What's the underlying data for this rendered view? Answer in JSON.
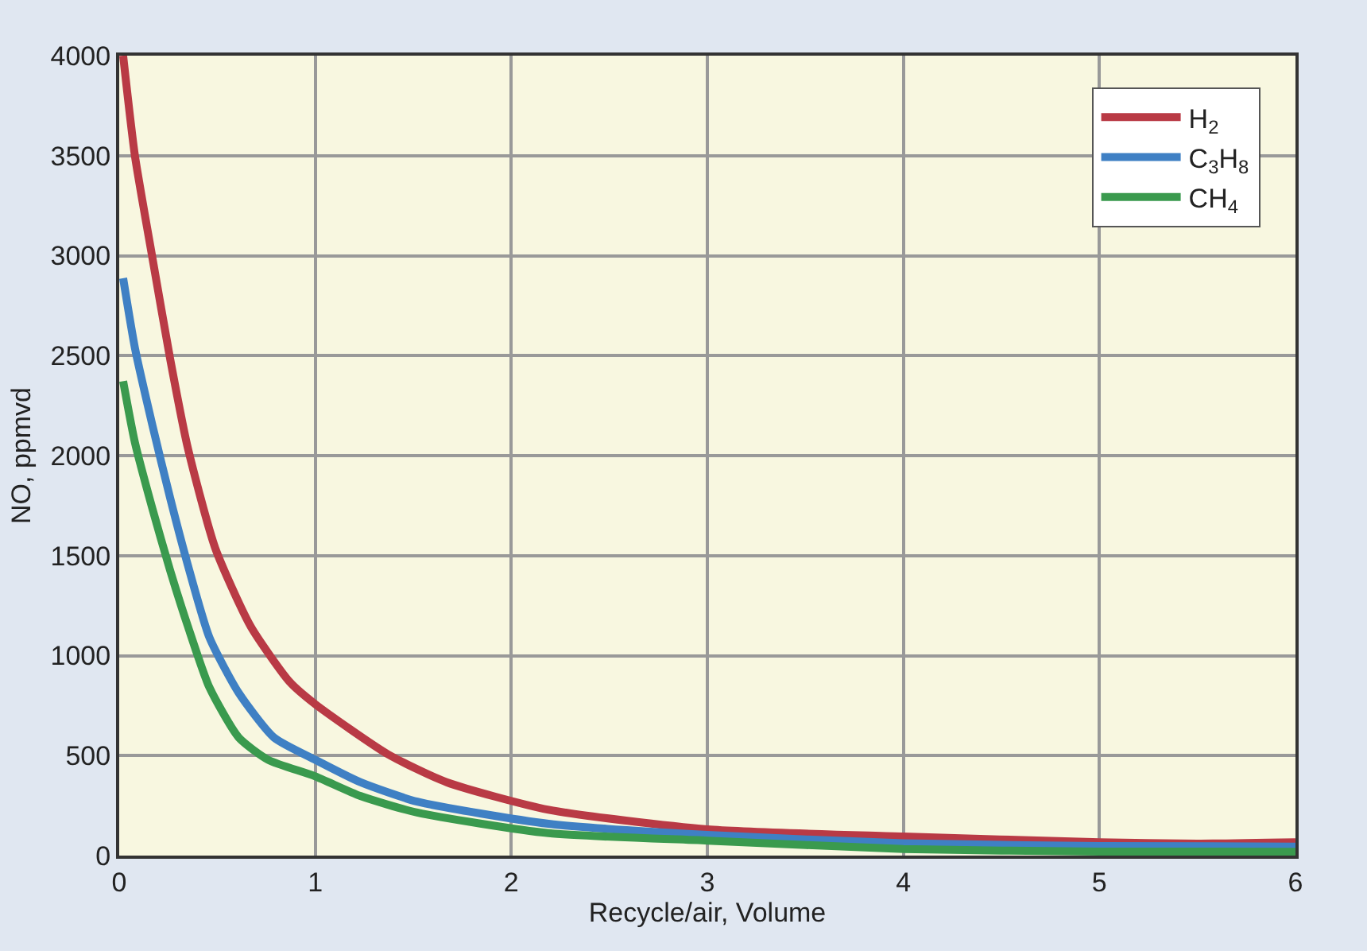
{
  "chart_data": {
    "type": "line",
    "xlabel": "Recycle/air, Volume",
    "ylabel": "NO, ppmvd",
    "xlim": [
      0,
      6
    ],
    "xticks": [
      0,
      1,
      2,
      3,
      4,
      5,
      6
    ],
    "ylim": [
      0,
      4000
    ],
    "yticks": [
      0,
      500,
      1000,
      1500,
      2000,
      2500,
      3000,
      3500,
      4000
    ],
    "grid": true,
    "legend": "top right",
    "marker": "none",
    "line_style": "solid",
    "series": [
      {
        "name": "H$_{2}$",
        "color": "#b93a45",
        "x": [
          0.02,
          0.08,
          0.17,
          0.26,
          0.35,
          0.49,
          0.67,
          0.87,
          1.0,
          1.37,
          1.67,
          2.19,
          3,
          4,
          5,
          5.5,
          6
        ],
        "values": [
          4000,
          3500,
          2985,
          2483,
          2038,
          1537,
          1147,
          868,
          757,
          507,
          367,
          229,
          131,
          95,
          67,
          60,
          67
        ]
      },
      {
        "name": "C$_{3}$H$_{8}$",
        "color": "#3f80c4",
        "x": [
          0.02,
          0.08,
          0.17,
          0.26,
          0.35,
          0.46,
          0.61,
          0.79,
          1.0,
          1.23,
          1.52,
          2.19,
          3,
          4,
          5,
          6
        ],
        "values": [
          2887,
          2539,
          2149,
          1787,
          1453,
          1091,
          813,
          590,
          479,
          367,
          270,
          159,
          103,
          62,
          48,
          45
        ]
      },
      {
        "name": "CH$_{4}$",
        "color": "#3a9a4e",
        "x": [
          0.02,
          0.08,
          0.17,
          0.26,
          0.35,
          0.46,
          0.61,
          0.76,
          1.0,
          1.23,
          1.52,
          2.19,
          3,
          4,
          5,
          6
        ],
        "values": [
          2372,
          2066,
          1732,
          1425,
          1147,
          841,
          590,
          479,
          396,
          298,
          215,
          112,
          75,
          33,
          20,
          19
        ]
      }
    ]
  }
}
